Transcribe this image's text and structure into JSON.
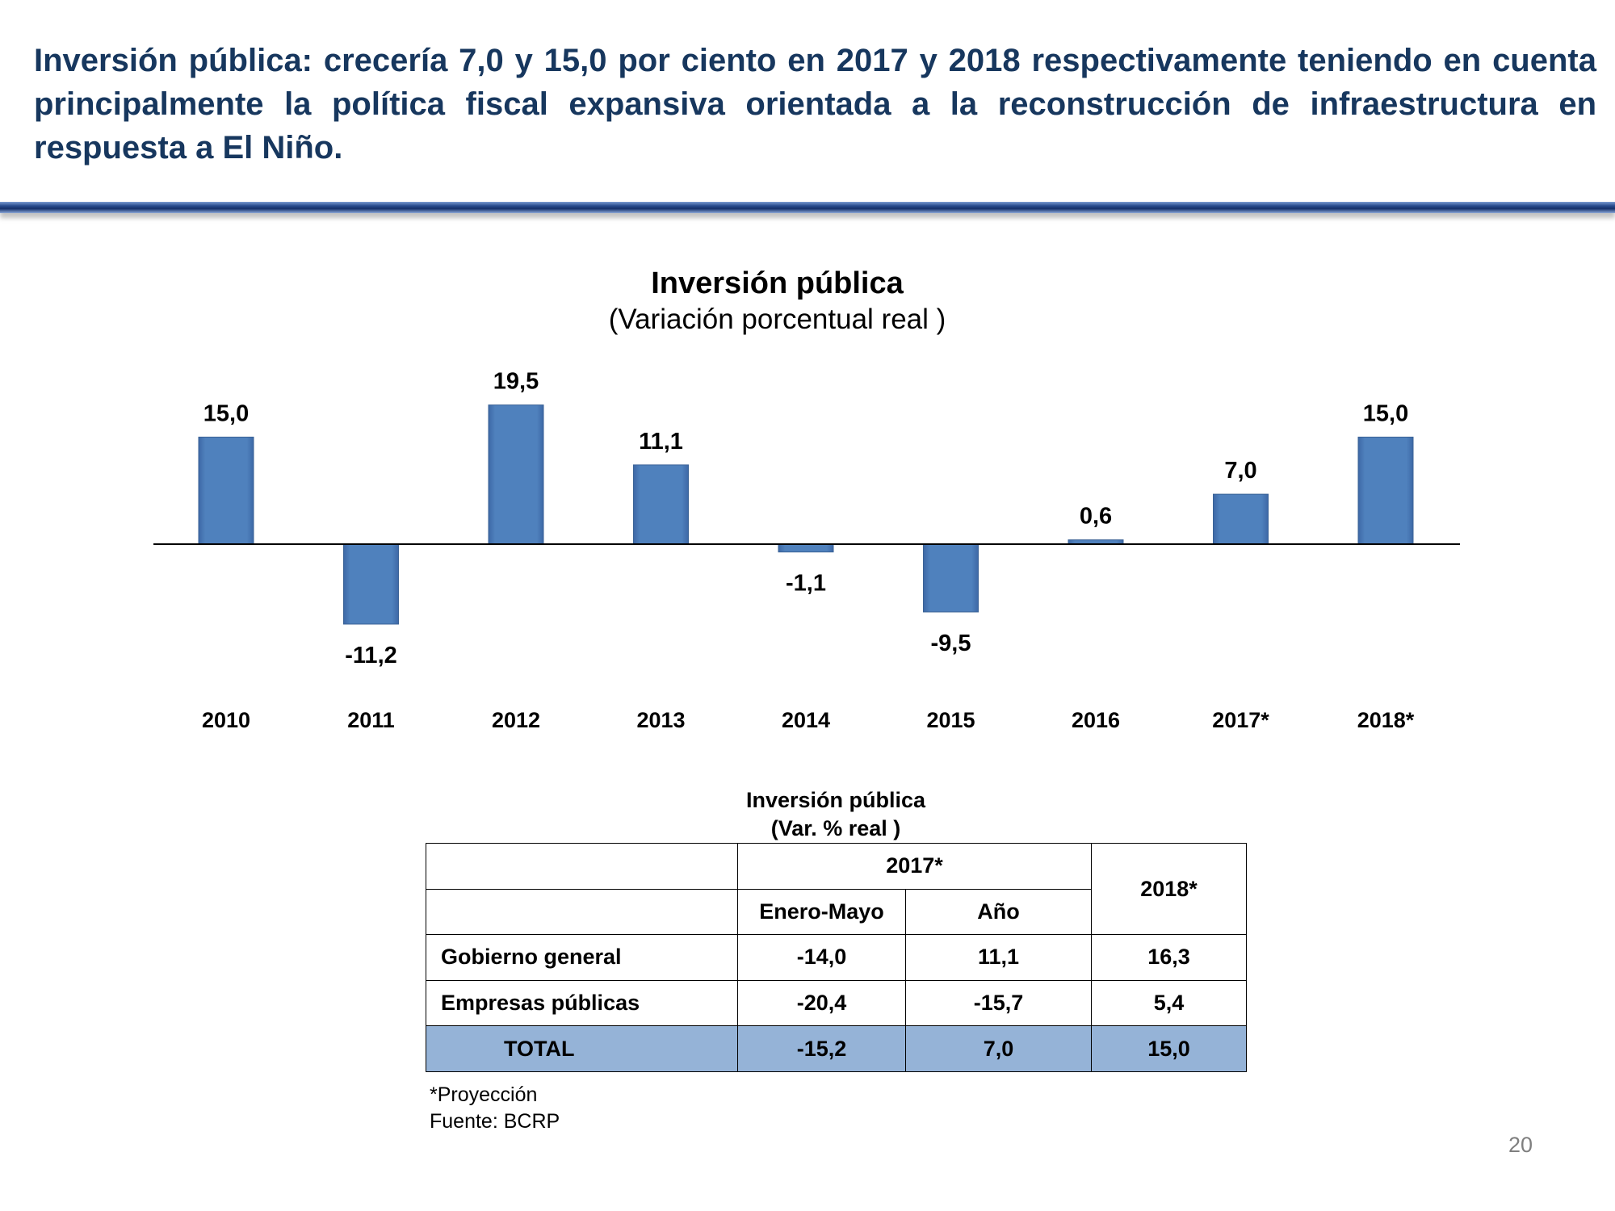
{
  "headline": "Inversión pública: crecería 7,0 y 15,0 por ciento en 2017 y 2018 respectivamente teniendo en cuenta principalmente la política fiscal expansiva orientada a la reconstrucción de infraestructura en respuesta a El Niño.",
  "chart_data": {
    "type": "bar",
    "title": "Inversión pública",
    "subtitle": "(Variación porcentual real )",
    "categories": [
      "2010",
      "2011",
      "2012",
      "2013",
      "2014",
      "2015",
      "2016",
      "2017*",
      "2018*"
    ],
    "values": [
      15.0,
      -11.2,
      19.5,
      11.1,
      -1.1,
      -9.5,
      0.6,
      7.0,
      15.0
    ],
    "value_labels": [
      "15,0",
      "-11,2",
      "19,5",
      "11,1",
      "-1,1",
      "-9,5",
      "0,6",
      "7,0",
      "15,0"
    ],
    "bar_color": "#4f81bd",
    "grid": false
  },
  "table": {
    "title": "Inversión pública",
    "subtitle": "(Var. % real )",
    "group_header": "2017*",
    "col_2018": "2018*",
    "sub_headers": [
      "Enero-Mayo",
      "Año"
    ],
    "rows": [
      {
        "label": "Gobierno general",
        "values": [
          "-14,0",
          "11,1",
          "16,3"
        ]
      },
      {
        "label": "Empresas públicas",
        "values": [
          "-20,4",
          "-15,7",
          "5,4"
        ]
      },
      {
        "label": "TOTAL",
        "values": [
          "-15,2",
          "7,0",
          "15,0"
        ]
      }
    ],
    "total_color": "#95b3d7"
  },
  "footnote": "*Proyección",
  "source": "Fuente: BCRP",
  "page_number": "20"
}
